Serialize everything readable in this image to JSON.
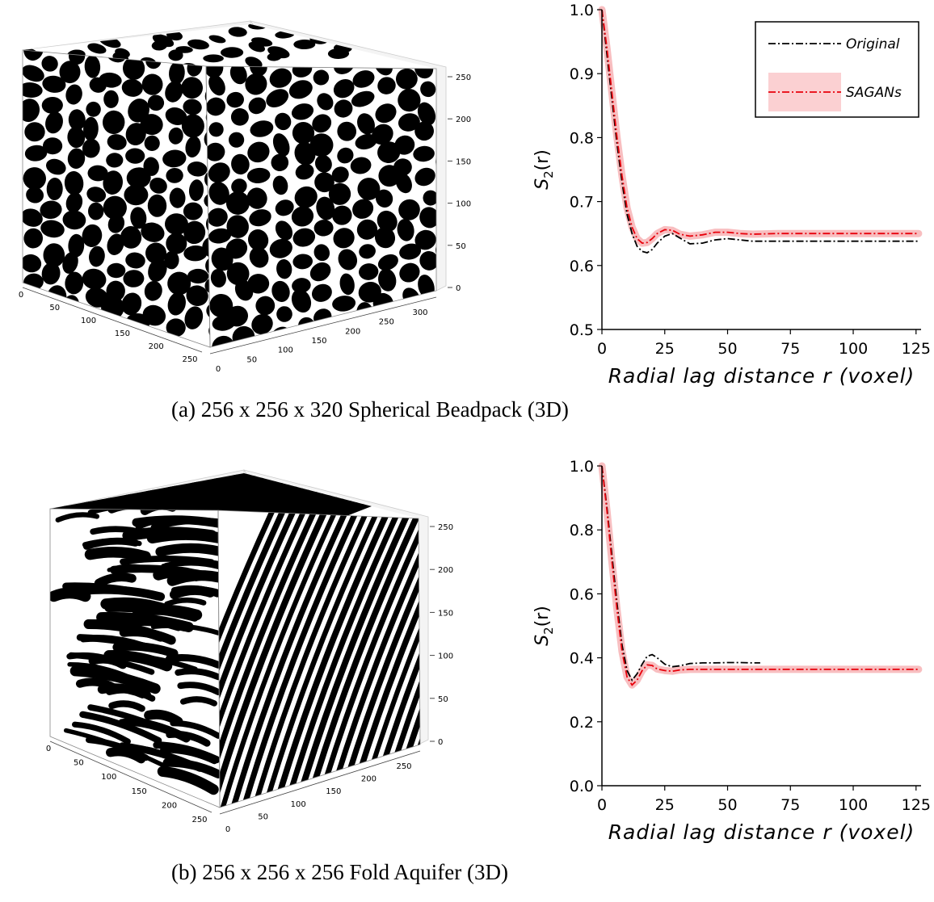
{
  "captions": {
    "a": "(a) 256 x 256 x 320 Spherical Beadpack (3D)",
    "b": "(b) 256 x 256 x 256 Fold Aquifer (3D)"
  },
  "cubes": [
    {
      "name": "beadpack",
      "x_ticks": [
        "0",
        "50",
        "100",
        "150",
        "200",
        "250"
      ],
      "y_ticks": [
        "0",
        "50",
        "100",
        "150",
        "200",
        "250",
        "300"
      ],
      "z_ticks": [
        "0",
        "50",
        "100",
        "150",
        "200",
        "250"
      ],
      "pattern": "blobs"
    },
    {
      "name": "fold-aquifer",
      "x_ticks": [
        "0",
        "50",
        "100",
        "150",
        "200",
        "250"
      ],
      "y_ticks": [
        "0",
        "50",
        "100",
        "150",
        "200",
        "250"
      ],
      "z_ticks": [
        "0",
        "50",
        "100",
        "150",
        "200",
        "250"
      ],
      "pattern": "stripes"
    }
  ],
  "chart_data": [
    {
      "type": "line",
      "title": "",
      "xlabel": "Radial lag distance r (voxel)",
      "ylabel": "S2(r)",
      "xlim": [
        0,
        127
      ],
      "ylim": [
        0.5,
        1.0
      ],
      "xticks": [
        "0",
        "25",
        "50",
        "75",
        "100",
        "125"
      ],
      "yticks": [
        "0.5",
        "0.6",
        "0.7",
        "0.8",
        "0.9",
        "1.0"
      ],
      "legend_position": "top-right",
      "series": [
        {
          "name": "Original",
          "color": "#000000",
          "x": [
            0,
            2,
            4,
            6,
            8,
            10,
            12,
            14,
            16,
            18,
            20,
            22,
            25,
            28,
            31,
            35,
            40,
            45,
            50,
            55,
            60,
            70,
            80,
            90,
            100,
            110,
            120,
            126
          ],
          "y": [
            1.0,
            0.93,
            0.86,
            0.79,
            0.73,
            0.68,
            0.65,
            0.63,
            0.622,
            0.62,
            0.625,
            0.635,
            0.646,
            0.65,
            0.643,
            0.634,
            0.635,
            0.64,
            0.642,
            0.64,
            0.638,
            0.638,
            0.638,
            0.638,
            0.638,
            0.638,
            0.638,
            0.638
          ]
        },
        {
          "name": "SAGANs",
          "color": "#e8000b",
          "x": [
            0,
            2,
            4,
            6,
            8,
            10,
            12,
            14,
            16,
            18,
            20,
            22,
            25,
            28,
            31,
            35,
            40,
            45,
            50,
            55,
            60,
            70,
            80,
            90,
            100,
            110,
            120,
            126
          ],
          "y": [
            1.0,
            0.94,
            0.87,
            0.8,
            0.74,
            0.69,
            0.66,
            0.642,
            0.635,
            0.636,
            0.642,
            0.65,
            0.656,
            0.655,
            0.649,
            0.646,
            0.648,
            0.652,
            0.652,
            0.65,
            0.649,
            0.65,
            0.65,
            0.65,
            0.65,
            0.65,
            0.65,
            0.65
          ]
        }
      ]
    },
    {
      "type": "line",
      "title": "",
      "xlabel": "Radial lag distance r (voxel)",
      "ylabel": "S2(r)",
      "xlim": [
        0,
        127
      ],
      "ylim": [
        0.0,
        1.0
      ],
      "xticks": [
        "0",
        "25",
        "50",
        "75",
        "100",
        "125"
      ],
      "yticks": [
        "0.0",
        "0.2",
        "0.4",
        "0.6",
        "0.8",
        "1.0"
      ],
      "legend_position": "none",
      "series": [
        {
          "name": "Original",
          "color": "#000000",
          "x": [
            0,
            2,
            4,
            6,
            8,
            10,
            12,
            14,
            16,
            18,
            20,
            22,
            25,
            28,
            31,
            35,
            40,
            45,
            50,
            55,
            60,
            63
          ],
          "y": [
            1.0,
            0.87,
            0.72,
            0.57,
            0.44,
            0.36,
            0.33,
            0.35,
            0.38,
            0.405,
            0.41,
            0.4,
            0.38,
            0.372,
            0.375,
            0.382,
            0.384,
            0.384,
            0.385,
            0.385,
            0.384,
            0.384
          ]
        },
        {
          "name": "SAGANs",
          "color": "#e8000b",
          "x": [
            0,
            2,
            4,
            6,
            8,
            10,
            12,
            14,
            16,
            18,
            20,
            22,
            25,
            28,
            31,
            35,
            40,
            50,
            60,
            70,
            80,
            90,
            100,
            110,
            120,
            126
          ],
          "y": [
            1.0,
            0.86,
            0.7,
            0.55,
            0.42,
            0.34,
            0.315,
            0.33,
            0.36,
            0.378,
            0.376,
            0.365,
            0.36,
            0.358,
            0.362,
            0.364,
            0.364,
            0.364,
            0.364,
            0.364,
            0.364,
            0.364,
            0.364,
            0.364,
            0.364,
            0.364
          ]
        }
      ]
    }
  ]
}
